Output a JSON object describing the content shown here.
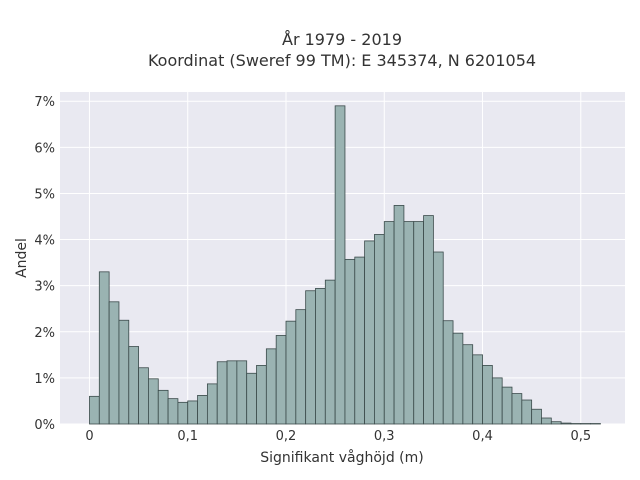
{
  "chart_data": {
    "type": "bar",
    "title_line1": "År 1979 - 2019",
    "title_line2": "Koordinat (Sweref 99 TM): E 345374, N 6201054",
    "xlabel": "Signifikant våghöjd (m)",
    "ylabel": "Andel",
    "xlim": [
      -0.03,
      0.545
    ],
    "ylim": [
      0,
      7.2
    ],
    "bin_width": 0.01,
    "x_ticks": [
      0,
      0.1,
      0.2,
      0.3,
      0.4,
      0.5
    ],
    "x_tick_labels": [
      "0",
      "0,1",
      "0,2",
      "0,3",
      "0,4",
      "0,5"
    ],
    "y_ticks": [
      0,
      1,
      2,
      3,
      4,
      5,
      6,
      7
    ],
    "y_tick_labels": [
      "0%",
      "1%",
      "2%",
      "3%",
      "4%",
      "5%",
      "6%",
      "7%"
    ],
    "grid": true,
    "colors": {
      "bar_fill": "#9ab3b2",
      "bar_edge": "#3a4a4a",
      "background": "#e9e9f1",
      "grid": "#ffffff"
    },
    "bins_start": [
      0.0,
      0.01,
      0.02,
      0.03,
      0.04,
      0.05,
      0.06,
      0.07,
      0.08,
      0.09,
      0.1,
      0.11,
      0.12,
      0.13,
      0.14,
      0.15,
      0.16,
      0.17,
      0.18,
      0.19,
      0.2,
      0.21,
      0.22,
      0.23,
      0.24,
      0.25,
      0.26,
      0.27,
      0.28,
      0.29,
      0.3,
      0.31,
      0.32,
      0.33,
      0.34,
      0.35,
      0.36,
      0.37,
      0.38,
      0.39,
      0.4,
      0.41,
      0.42,
      0.43,
      0.44,
      0.45,
      0.46,
      0.47,
      0.48,
      0.49,
      0.5,
      0.51
    ],
    "values": [
      0.6,
      3.3,
      2.65,
      2.25,
      1.68,
      1.22,
      0.98,
      0.73,
      0.55,
      0.47,
      0.5,
      0.62,
      0.87,
      1.35,
      1.37,
      1.37,
      1.1,
      1.27,
      1.63,
      1.92,
      2.23,
      2.48,
      2.89,
      2.94,
      3.12,
      6.9,
      3.57,
      3.62,
      3.97,
      4.11,
      4.39,
      4.74,
      4.39,
      4.39,
      4.52,
      3.73,
      2.24,
      1.97,
      1.72,
      1.5,
      1.27,
      1.0,
      0.8,
      0.66,
      0.52,
      0.32,
      0.13,
      0.05,
      0.02,
      0.01,
      0.01,
      0.01
    ]
  }
}
